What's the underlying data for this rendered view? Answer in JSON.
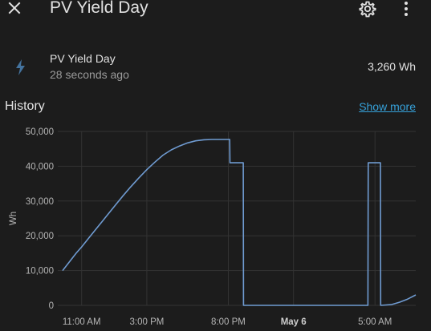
{
  "header": {
    "title": "PV Yield Day",
    "close_icon": "close-icon",
    "settings_icon": "gear-icon",
    "more_icon": "more-vert-icon"
  },
  "entity": {
    "icon": "lightning-bolt-icon",
    "name": "PV Yield Day",
    "last_changed": "28 seconds ago",
    "state": "3,260 Wh"
  },
  "history": {
    "title": "History",
    "show_more_label": "Show more"
  },
  "colors": {
    "background": "#1c1c1c",
    "accent": "#36a1d9",
    "line": "#6f9bd1",
    "icon": "#44739e"
  },
  "chart_data": {
    "type": "line",
    "ylabel": "Wh",
    "ylim": [
      0,
      50000
    ],
    "y_ticks": [
      "0",
      "10,000",
      "20,000",
      "30,000",
      "40,000",
      "50,000"
    ],
    "x_ticks": [
      {
        "label": "11:00 AM",
        "bold": false
      },
      {
        "label": "3:00 PM",
        "bold": false
      },
      {
        "label": "8:00 PM",
        "bold": false
      },
      {
        "label": "May 6",
        "bold": true
      },
      {
        "label": "5:00 AM",
        "bold": false
      }
    ],
    "series": [
      {
        "values": [
          [
            "9:50 AM",
            10000
          ],
          [
            "10:10 AM",
            12000
          ],
          [
            "10:40 AM",
            15000
          ],
          [
            "11:00 AM",
            16800
          ],
          [
            "11:30 AM",
            19700
          ],
          [
            "12:00 PM",
            22600
          ],
          [
            "12:30 PM",
            25500
          ],
          [
            "1:00 PM",
            28400
          ],
          [
            "1:30 PM",
            31300
          ],
          [
            "2:00 PM",
            34000
          ],
          [
            "2:30 PM",
            36600
          ],
          [
            "3:00 PM",
            39000
          ],
          [
            "3:30 PM",
            41200
          ],
          [
            "4:00 PM",
            43200
          ],
          [
            "4:30 PM",
            44700
          ],
          [
            "5:00 PM",
            45800
          ],
          [
            "5:30 PM",
            46700
          ],
          [
            "6:00 PM",
            47300
          ],
          [
            "6:30 PM",
            47600
          ],
          [
            "7:00 PM",
            47700
          ],
          [
            "7:40 PM",
            47700
          ],
          [
            "8:05 PM",
            47700
          ],
          [
            "8:06 PM",
            41000
          ],
          [
            "8:55 PM",
            41000
          ],
          [
            "8:56 PM",
            0
          ],
          [
            "12:00 AM",
            0
          ],
          [
            "4:00 AM",
            0
          ],
          [
            "4:34 AM",
            0
          ],
          [
            "4:35 AM",
            41000
          ],
          [
            "5:20 AM",
            41000
          ],
          [
            "5:21 AM",
            0
          ],
          [
            "6:00 AM",
            200
          ],
          [
            "6:30 AM",
            900
          ],
          [
            "7:00 AM",
            1800
          ],
          [
            "7:30 AM",
            3000
          ]
        ]
      }
    ]
  }
}
